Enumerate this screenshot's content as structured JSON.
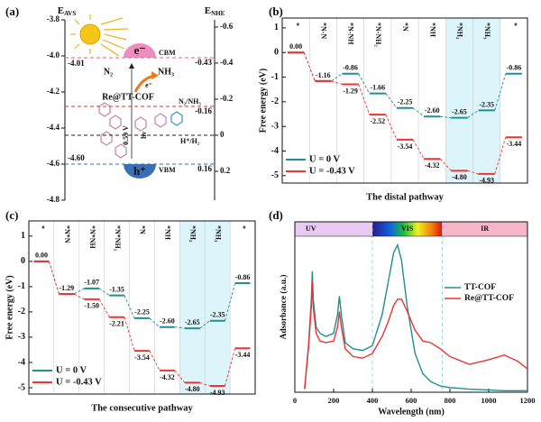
{
  "chart_data": [
    {
      "type": "energy-levels",
      "panel_label": "(a)",
      "ylabel": {
        "main": "E",
        "sub": "AVS"
      },
      "y2label": {
        "main": "E",
        "sub": "NHE"
      },
      "ylim": [
        -4.8,
        -3.8
      ],
      "yticks": [
        -3.8,
        {
          "value": -4,
          "label": "-4.0"
        },
        -4.2,
        -4.4,
        -4.6,
        -4.8
      ],
      "y2lim": [
        -0.64,
        0.36
      ],
      "y2ticks": [
        -0.6,
        -0.4,
        -0.2,
        0,
        0.2
      ],
      "levels": [
        {
          "name": "CBM",
          "nhe": -0.43,
          "nhe_label": "-0.43",
          "avs_label": "-4.01",
          "color": "#e2579b"
        },
        {
          "name": "N₂/NH₃",
          "nhe": -0.16,
          "nhe_label": "-0.16",
          "color": "#e8302c"
        },
        {
          "name": "H⁺/H₂",
          "nhe": 0,
          "color": "#222222"
        },
        {
          "name": "VBM",
          "nhe": 0.16,
          "nhe_label": "0.16",
          "avs_label": "-4.60",
          "color": "#2a78a8"
        }
      ],
      "annotations": [
        "e⁻",
        "h⁺",
        "N₂",
        "NH₃",
        "e⁻",
        "Re@TT-COF",
        "0.59 V",
        "hν"
      ]
    },
    {
      "type": "step",
      "panel_label": "(b)",
      "caption": "The distal pathway",
      "ylabel": "Free energy (eV)",
      "categories": [
        "*",
        "*N-N",
        "*N-NH",
        "*N-NH₂",
        "*N",
        "*NH",
        "*NH₂",
        "*NH₃",
        "*"
      ],
      "highlight": [
        6,
        7
      ],
      "ylim": [
        -5.3,
        1.4
      ],
      "yticks": [
        1,
        0,
        -1,
        -2,
        -3,
        -4,
        -5
      ],
      "legend": "lower left",
      "series": [
        {
          "name": "U = 0 V",
          "color": "#1f8f8f",
          "values": [
            0,
            -1.16,
            -0.86,
            -1.66,
            -2.25,
            -2.6,
            -2.65,
            -2.35,
            -0.86
          ],
          "value_labels": [
            "0.00",
            "-1.16",
            "-0.86",
            "-1.66",
            "-2.25",
            "-2.60",
            "-2.65",
            "-2.35",
            "-0.86"
          ]
        },
        {
          "name": "U = -0.43 V",
          "color": "#ee3330",
          "values": [
            0,
            -1.16,
            -1.29,
            -2.52,
            -3.54,
            -4.32,
            -4.8,
            -4.93,
            -3.44
          ],
          "value_labels": [
            null,
            null,
            "-1.29",
            "-2.52",
            "-3.54",
            "-4.32",
            "-4.80",
            "-4.93",
            "-3.44"
          ]
        }
      ]
    },
    {
      "type": "step",
      "panel_label": "(c)",
      "caption": "The consecutive pathway",
      "ylabel": "Free energy (eV)",
      "categories": [
        "*",
        "*N*N",
        "*N*NH",
        "*N*NH₂",
        "*N",
        "*NH",
        "*NH₂",
        "*NH₃",
        "*"
      ],
      "highlight": [
        6,
        7
      ],
      "ylim": [
        -5.25,
        1.6
      ],
      "yticks": [
        1,
        0,
        -1,
        -2,
        -3,
        -4,
        -5
      ],
      "legend": "lower left",
      "series": [
        {
          "name": "U = 0 V",
          "color": "#1f8f8f",
          "values": [
            0,
            -1.29,
            -1.07,
            -1.35,
            -2.25,
            -2.6,
            -2.65,
            -2.35,
            -0.86
          ],
          "value_labels": [
            "0.00",
            "-1.29",
            "-1.07",
            "-1.35",
            "-2.25",
            "-2.60",
            "-2.65",
            "-2.35",
            "-0.86"
          ]
        },
        {
          "name": "U = -0.43 V",
          "color": "#ee3330",
          "values": [
            0,
            -1.29,
            -1.5,
            -2.21,
            -3.54,
            -4.32,
            -4.8,
            -4.93,
            -3.44
          ],
          "value_labels": [
            null,
            null,
            "-1.50",
            "-2.21",
            "-3.54",
            "-4.32",
            "-4.80",
            "-4.93",
            "-3.44"
          ]
        }
      ]
    },
    {
      "type": "line",
      "panel_label": "(d)",
      "xlabel": "Wavelength (nm)",
      "ylabel": "Adsorbance (a.u.)",
      "xlim": [
        0,
        1200
      ],
      "xticks": [
        0,
        200,
        400,
        600,
        800,
        1000,
        1200
      ],
      "ylim": [
        0,
        1
      ],
      "legend": "center right",
      "spans": [
        {
          "label": "UV",
          "from": 0,
          "to": 400,
          "color": "#e8c9f2"
        },
        {
          "label": "VIS",
          "from": 400,
          "to": 760,
          "color": "url(#rainbow)"
        },
        {
          "label": "IR",
          "from": 760,
          "to": 1200,
          "color": "#f6b5c9"
        }
      ],
      "x": [
        50,
        70,
        85,
        90,
        95,
        110,
        130,
        160,
        200,
        220,
        230,
        240,
        260,
        300,
        350,
        400,
        450,
        480,
        510,
        530,
        550,
        580,
        620,
        660,
        700,
        750,
        800,
        900,
        1000,
        1080,
        1150,
        1200
      ],
      "series": [
        {
          "name": "TT-COF",
          "color": "#1f8f8f",
          "values": [
            0.02,
            0.3,
            0.6,
            0.78,
            0.6,
            0.42,
            0.38,
            0.36,
            0.38,
            0.5,
            0.62,
            0.5,
            0.32,
            0.28,
            0.27,
            0.3,
            0.5,
            0.7,
            0.9,
            0.95,
            0.85,
            0.55,
            0.25,
            0.12,
            0.07,
            0.04,
            0.03,
            0.02,
            0.015,
            0.01,
            0.01,
            0.01
          ]
        },
        {
          "name": "Re@TT-COF",
          "color": "#ee3330",
          "values": [
            0.02,
            0.28,
            0.55,
            0.72,
            0.55,
            0.38,
            0.33,
            0.32,
            0.33,
            0.42,
            0.52,
            0.42,
            0.28,
            0.23,
            0.22,
            0.25,
            0.36,
            0.45,
            0.56,
            0.6,
            0.6,
            0.52,
            0.4,
            0.33,
            0.32,
            0.28,
            0.23,
            0.18,
            0.21,
            0.24,
            0.2,
            0.15
          ]
        }
      ]
    }
  ]
}
